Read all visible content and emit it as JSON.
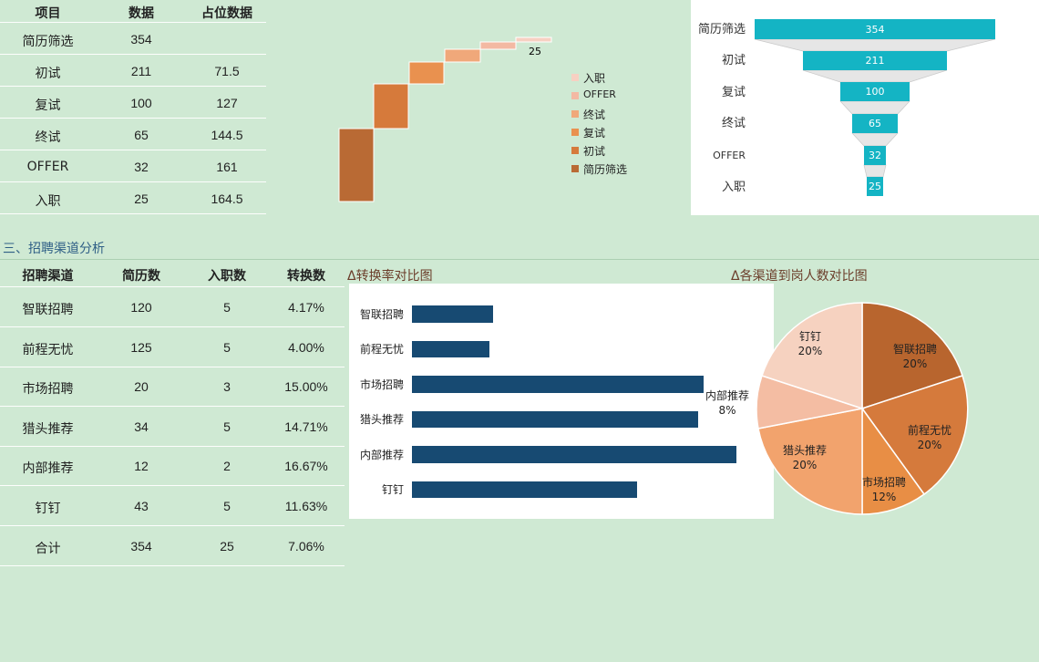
{
  "table1": {
    "headers": [
      "项目",
      "数据",
      "占位数据"
    ],
    "rows": [
      [
        "简历筛选",
        "354",
        ""
      ],
      [
        "初试",
        "211",
        "71.5"
      ],
      [
        "复试",
        "100",
        "127"
      ],
      [
        "终试",
        "65",
        "144.5"
      ],
      [
        "OFFER",
        "32",
        "161"
      ],
      [
        "入职",
        "25",
        "164.5"
      ]
    ]
  },
  "section_title": "三、招聘渠道分析",
  "table2": {
    "headers": [
      "招聘渠道",
      "简历数",
      "入职数",
      "转换数"
    ],
    "rows": [
      [
        "智联招聘",
        "120",
        "5",
        "4.17%"
      ],
      [
        "前程无忧",
        "125",
        "5",
        "4.00%"
      ],
      [
        "市场招聘",
        "20",
        "3",
        "15.00%"
      ],
      [
        "猎头推荐",
        "34",
        "5",
        "14.71%"
      ],
      [
        "内部推荐",
        "12",
        "2",
        "16.67%"
      ],
      [
        "钉钉",
        "43",
        "5",
        "11.63%"
      ],
      [
        "合计",
        "354",
        "25",
        "7.06%"
      ]
    ]
  },
  "chart_titles": {
    "conversion": "Δ转换率对比图",
    "pie": "Δ各渠道到岗人数对比图"
  },
  "chart_data": [
    {
      "type": "bar",
      "categories": [
        "简历筛选",
        "初试",
        "复试",
        "终试",
        "OFFER",
        "入职"
      ],
      "values": [
        354,
        211,
        100,
        65,
        32,
        25
      ],
      "placeholders": [
        0,
        71.5,
        127,
        144.5,
        161,
        164.5
      ],
      "data_label": "25",
      "legend": [
        "入职",
        "OFFER",
        "终试",
        "复试",
        "初试",
        "简历筛选"
      ],
      "legend_colors": [
        "#f7d0c2",
        "#f3b9a3",
        "#f0a87a",
        "#e9914f",
        "#d67a3b",
        "#b96a34"
      ],
      "legend_position": "right"
    },
    {
      "type": "bar",
      "categories": [
        "简历筛选",
        "初试",
        "复试",
        "终试",
        "OFFER",
        "入职"
      ],
      "values": [
        354,
        211,
        100,
        65,
        32,
        25
      ],
      "color": "#14b4c4"
    },
    {
      "type": "bar",
      "orientation": "horizontal",
      "categories": [
        "智联招聘",
        "前程无忧",
        "市场招聘",
        "猎头推荐",
        "内部推荐",
        "钉钉"
      ],
      "values": [
        4.17,
        4.0,
        15.0,
        14.71,
        16.67,
        11.63
      ],
      "color": "#174a72"
    },
    {
      "type": "pie",
      "labels": [
        "智联招聘",
        "前程无忧",
        "市场招聘",
        "猎头推荐",
        "内部推荐",
        "钉钉"
      ],
      "values": [
        20,
        20,
        12,
        20,
        8,
        20
      ],
      "value_labels": [
        "20%",
        "20%",
        "12%",
        "20%",
        "8%",
        "20%"
      ],
      "colors": [
        "#b8652e",
        "#d57a3c",
        "#e88e45",
        "#f2a36d",
        "#f4bda3",
        "#f6d2c0"
      ]
    }
  ]
}
